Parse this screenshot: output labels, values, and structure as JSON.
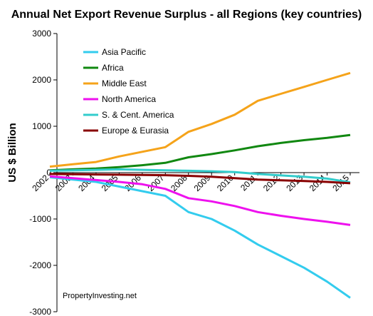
{
  "chart_data": {
    "type": "line",
    "title": "Annual Net Export Revenue Surplus -  all Regions (key countries)",
    "ylabel": "US $ Billion",
    "xlabel": "",
    "x": [
      2002,
      2003,
      2004,
      2005,
      2006,
      2007,
      2008,
      2009,
      2010,
      2011,
      2012,
      2013,
      2014,
      2015
    ],
    "ylim": [
      -3000,
      3000
    ],
    "yticks": [
      -3000,
      -2000,
      -1000,
      0,
      1000,
      2000,
      3000
    ],
    "grid": false,
    "legend_position": "top-left",
    "source_note": "PropertyInvesting.net",
    "series": [
      {
        "name": "Asia Pacific",
        "color": "#33CCEE",
        "values": [
          -100,
          -150,
          -200,
          -300,
          -400,
          -500,
          -850,
          -1000,
          -1250,
          -1550,
          -1800,
          -2050,
          -2350,
          -2700
        ]
      },
      {
        "name": "Africa",
        "color": "#118811",
        "values": [
          50,
          70,
          90,
          120,
          160,
          210,
          330,
          400,
          480,
          570,
          640,
          700,
          750,
          810
        ]
      },
      {
        "name": "Middle East",
        "color": "#F5A31A",
        "values": [
          130,
          180,
          230,
          350,
          450,
          550,
          880,
          1050,
          1250,
          1550,
          1700,
          1850,
          2000,
          2150
        ]
      },
      {
        "name": "North America",
        "color": "#EE11EE",
        "values": [
          -80,
          -120,
          -160,
          -200,
          -250,
          -350,
          -550,
          -620,
          -720,
          -850,
          -930,
          -1000,
          -1060,
          -1130
        ]
      },
      {
        "name": "S. & Cent. America",
        "color": "#33CCCC",
        "values": [
          40,
          50,
          60,
          70,
          60,
          50,
          40,
          30,
          10,
          -30,
          -60,
          -90,
          -130,
          -210
        ]
      },
      {
        "name": "Europe & Eurasia",
        "color": "#880000",
        "values": [
          -30,
          -35,
          -40,
          -45,
          -50,
          -55,
          -70,
          -90,
          -120,
          -150,
          -165,
          -180,
          -200,
          -230
        ]
      }
    ]
  }
}
